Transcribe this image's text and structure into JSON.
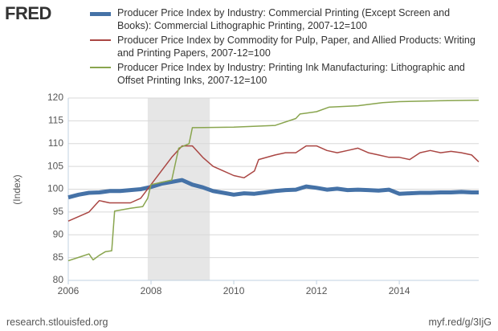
{
  "logo": "FRED",
  "footer_left": "research.stlouisfed.org",
  "footer_right": "myf.red/g/3IjG",
  "chart_data": {
    "type": "line",
    "y_label": "(Index)",
    "xlim": [
      2006,
      2015.92
    ],
    "xticks": [
      2006,
      2008,
      2010,
      2012,
      2014
    ],
    "ylim": [
      80,
      120
    ],
    "yticks": [
      80,
      85,
      90,
      95,
      100,
      105,
      110,
      115,
      120
    ],
    "grid": true,
    "shaded_ranges": [
      [
        2007.92,
        2009.42
      ]
    ],
    "series": [
      {
        "name": "Producer Price Index by Industry: Commercial Printing (Except Screen and Books): Commercial Lithographic Printing, 2007-12=100",
        "color": "#4572a7",
        "width": 5,
        "x": [
          2006,
          2006.25,
          2006.5,
          2006.75,
          2007,
          2007.25,
          2007.5,
          2007.75,
          2008,
          2008.25,
          2008.5,
          2008.75,
          2009,
          2009.25,
          2009.5,
          2009.75,
          2010,
          2010.25,
          2010.5,
          2010.75,
          2011,
          2011.25,
          2011.5,
          2011.75,
          2012,
          2012.25,
          2012.5,
          2012.75,
          2013,
          2013.25,
          2013.5,
          2013.75,
          2014,
          2014.25,
          2014.5,
          2014.75,
          2015,
          2015.25,
          2015.5,
          2015.75,
          2015.92
        ],
        "values": [
          98.2,
          98.8,
          99.2,
          99.3,
          99.6,
          99.6,
          99.8,
          100.0,
          100.5,
          101.2,
          101.6,
          102.0,
          101.0,
          100.4,
          99.6,
          99.2,
          98.8,
          99.1,
          99.0,
          99.3,
          99.6,
          99.8,
          99.9,
          100.6,
          100.3,
          99.9,
          100.1,
          99.8,
          99.9,
          99.8,
          99.7,
          99.9,
          99.0,
          99.1,
          99.2,
          99.2,
          99.3,
          99.3,
          99.4,
          99.3,
          99.3
        ]
      },
      {
        "name": "Producer Price Index by Commodity for Pulp, Paper, and Allied Products: Writing and Printing Papers, 2007-12=100",
        "color": "#aa4643",
        "width": 1.5,
        "x": [
          2006,
          2006.25,
          2006.5,
          2006.75,
          2007,
          2007.25,
          2007.5,
          2007.75,
          2008,
          2008.25,
          2008.5,
          2008.75,
          2009,
          2009.25,
          2009.5,
          2009.75,
          2010,
          2010.25,
          2010.5,
          2010.6,
          2011,
          2011.25,
          2011.5,
          2011.75,
          2012,
          2012.25,
          2012.5,
          2012.75,
          2013,
          2013.25,
          2013.5,
          2013.75,
          2014,
          2014.25,
          2014.5,
          2014.75,
          2015,
          2015.25,
          2015.5,
          2015.75,
          2015.92
        ],
        "values": [
          93.0,
          94.0,
          95.0,
          97.5,
          97.0,
          97.0,
          97.0,
          98.0,
          101.0,
          104.0,
          107.0,
          109.5,
          109.5,
          107.0,
          105.0,
          104.0,
          103.0,
          102.5,
          104.0,
          106.5,
          107.5,
          108.0,
          108.0,
          109.5,
          109.5,
          108.5,
          108.0,
          108.5,
          109.0,
          108.0,
          107.5,
          107.0,
          107.0,
          106.5,
          108.0,
          108.5,
          108.0,
          108.3,
          108.0,
          107.5,
          106.0
        ]
      },
      {
        "name": "Producer Price Index by Industry: Printing Ink Manufacturing: Lithographic and Offset Printing Inks, 2007-12=100",
        "color": "#89a54e",
        "width": 1.5,
        "x": [
          2006,
          2006.3,
          2006.5,
          2006.6,
          2006.75,
          2006.9,
          2007.05,
          2007.12,
          2007.5,
          2007.8,
          2007.92,
          2008,
          2008.5,
          2008.67,
          2008.92,
          2009,
          2010,
          2011,
          2011.5,
          2011.6,
          2012,
          2012.3,
          2013,
          2013.6,
          2014,
          2015,
          2015.92
        ],
        "values": [
          84.3,
          85.2,
          85.8,
          84.5,
          85.5,
          86.3,
          86.5,
          95.2,
          95.8,
          96.2,
          98.0,
          101.0,
          102.0,
          109.0,
          110.0,
          113.5,
          113.6,
          114.0,
          115.5,
          116.5,
          117.0,
          118.0,
          118.3,
          119.0,
          119.2,
          119.4,
          119.5
        ]
      }
    ]
  }
}
